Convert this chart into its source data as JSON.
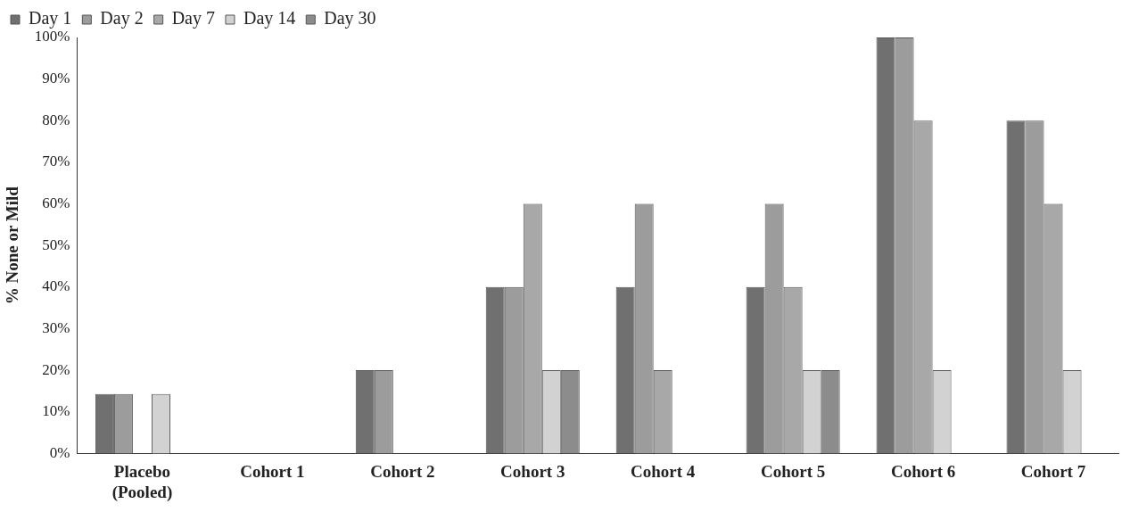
{
  "chart_data": {
    "type": "bar",
    "ylabel": "% None or Mild",
    "categories": [
      "Placebo\n(Pooled)",
      "Cohort 1",
      "Cohort 2",
      "Cohort 3",
      "Cohort 4",
      "Cohort 5",
      "Cohort 6",
      "Cohort 7"
    ],
    "series": [
      {
        "name": "Day 1",
        "color": "#707070",
        "values": [
          14.3,
          0,
          20,
          40,
          40,
          40,
          100,
          80
        ]
      },
      {
        "name": "Day 2",
        "color": "#9c9c9c",
        "values": [
          14.3,
          0,
          20,
          40,
          60,
          60,
          100,
          80
        ]
      },
      {
        "name": "Day 7",
        "color": "#a8a8a8",
        "values": [
          0,
          0,
          0,
          60,
          20,
          40,
          80,
          60
        ]
      },
      {
        "name": "Day 14",
        "color": "#d2d2d2",
        "values": [
          14.3,
          0,
          0,
          20,
          0,
          20,
          20,
          20
        ]
      },
      {
        "name": "Day 30",
        "color": "#8c8c8c",
        "values": [
          0,
          0,
          0,
          20,
          0,
          20,
          0,
          0
        ]
      }
    ],
    "ylim": [
      0,
      100
    ],
    "yticks": [
      {
        "value": 0,
        "label": "0%"
      },
      {
        "value": 10,
        "label": "10%"
      },
      {
        "value": 20,
        "label": "20%"
      },
      {
        "value": 30,
        "label": "30%"
      },
      {
        "value": 40,
        "label": "40%"
      },
      {
        "value": 50,
        "label": "50%"
      },
      {
        "value": 60,
        "label": "60%"
      },
      {
        "value": 70,
        "label": "70%"
      },
      {
        "value": 80,
        "label": "80%"
      },
      {
        "value": 90,
        "label": "90%"
      },
      {
        "value": 100,
        "label": "100%"
      }
    ],
    "grid": false,
    "legend": "top left"
  }
}
